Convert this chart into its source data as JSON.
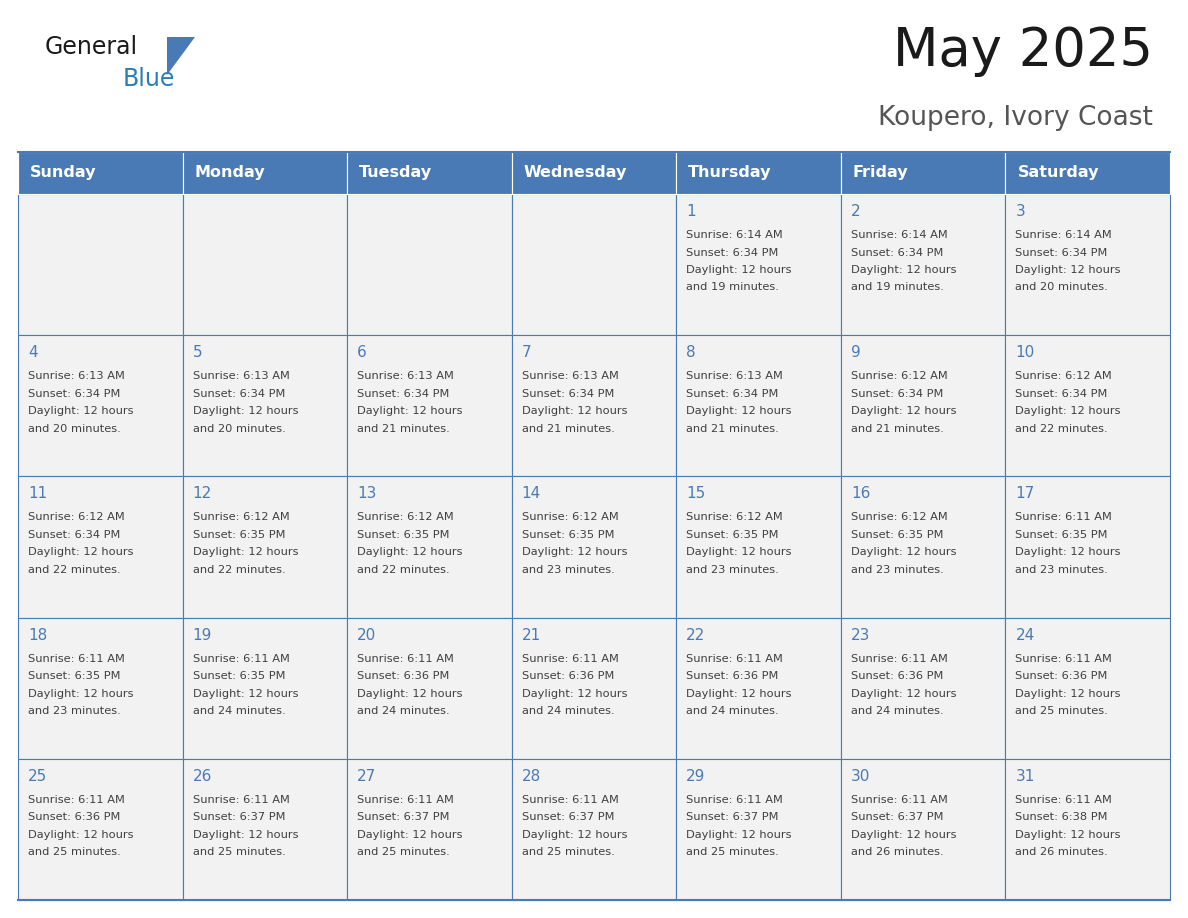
{
  "title": "May 2025",
  "subtitle": "Koupero, Ivory Coast",
  "days_of_week": [
    "Sunday",
    "Monday",
    "Tuesday",
    "Wednesday",
    "Thursday",
    "Friday",
    "Saturday"
  ],
  "header_bg_color": "#4a7ab5",
  "header_text_color": "#ffffff",
  "cell_bg_color": "#f2f2f2",
  "day_number_color": "#4a7ab5",
  "cell_text_color": "#404040",
  "grid_color": "#4a7ab5",
  "title_color": "#1a1a1a",
  "subtitle_color": "#555555",
  "logo_general_color": "#1a1a1a",
  "logo_blue_color": "#2a7db5",
  "logo_triangle_color": "#4a7ab5",
  "calendar": [
    [
      {
        "day": 0,
        "sunrise": "",
        "sunset": "",
        "daylight": ""
      },
      {
        "day": 0,
        "sunrise": "",
        "sunset": "",
        "daylight": ""
      },
      {
        "day": 0,
        "sunrise": "",
        "sunset": "",
        "daylight": ""
      },
      {
        "day": 0,
        "sunrise": "",
        "sunset": "",
        "daylight": ""
      },
      {
        "day": 1,
        "sunrise": "6:14 AM",
        "sunset": "6:34 PM",
        "daylight": "12 hours and 19 minutes."
      },
      {
        "day": 2,
        "sunrise": "6:14 AM",
        "sunset": "6:34 PM",
        "daylight": "12 hours and 19 minutes."
      },
      {
        "day": 3,
        "sunrise": "6:14 AM",
        "sunset": "6:34 PM",
        "daylight": "12 hours and 20 minutes."
      }
    ],
    [
      {
        "day": 4,
        "sunrise": "6:13 AM",
        "sunset": "6:34 PM",
        "daylight": "12 hours and 20 minutes."
      },
      {
        "day": 5,
        "sunrise": "6:13 AM",
        "sunset": "6:34 PM",
        "daylight": "12 hours and 20 minutes."
      },
      {
        "day": 6,
        "sunrise": "6:13 AM",
        "sunset": "6:34 PM",
        "daylight": "12 hours and 21 minutes."
      },
      {
        "day": 7,
        "sunrise": "6:13 AM",
        "sunset": "6:34 PM",
        "daylight": "12 hours and 21 minutes."
      },
      {
        "day": 8,
        "sunrise": "6:13 AM",
        "sunset": "6:34 PM",
        "daylight": "12 hours and 21 minutes."
      },
      {
        "day": 9,
        "sunrise": "6:12 AM",
        "sunset": "6:34 PM",
        "daylight": "12 hours and 21 minutes."
      },
      {
        "day": 10,
        "sunrise": "6:12 AM",
        "sunset": "6:34 PM",
        "daylight": "12 hours and 22 minutes."
      }
    ],
    [
      {
        "day": 11,
        "sunrise": "6:12 AM",
        "sunset": "6:34 PM",
        "daylight": "12 hours and 22 minutes."
      },
      {
        "day": 12,
        "sunrise": "6:12 AM",
        "sunset": "6:35 PM",
        "daylight": "12 hours and 22 minutes."
      },
      {
        "day": 13,
        "sunrise": "6:12 AM",
        "sunset": "6:35 PM",
        "daylight": "12 hours and 22 minutes."
      },
      {
        "day": 14,
        "sunrise": "6:12 AM",
        "sunset": "6:35 PM",
        "daylight": "12 hours and 23 minutes."
      },
      {
        "day": 15,
        "sunrise": "6:12 AM",
        "sunset": "6:35 PM",
        "daylight": "12 hours and 23 minutes."
      },
      {
        "day": 16,
        "sunrise": "6:12 AM",
        "sunset": "6:35 PM",
        "daylight": "12 hours and 23 minutes."
      },
      {
        "day": 17,
        "sunrise": "6:11 AM",
        "sunset": "6:35 PM",
        "daylight": "12 hours and 23 minutes."
      }
    ],
    [
      {
        "day": 18,
        "sunrise": "6:11 AM",
        "sunset": "6:35 PM",
        "daylight": "12 hours and 23 minutes."
      },
      {
        "day": 19,
        "sunrise": "6:11 AM",
        "sunset": "6:35 PM",
        "daylight": "12 hours and 24 minutes."
      },
      {
        "day": 20,
        "sunrise": "6:11 AM",
        "sunset": "6:36 PM",
        "daylight": "12 hours and 24 minutes."
      },
      {
        "day": 21,
        "sunrise": "6:11 AM",
        "sunset": "6:36 PM",
        "daylight": "12 hours and 24 minutes."
      },
      {
        "day": 22,
        "sunrise": "6:11 AM",
        "sunset": "6:36 PM",
        "daylight": "12 hours and 24 minutes."
      },
      {
        "day": 23,
        "sunrise": "6:11 AM",
        "sunset": "6:36 PM",
        "daylight": "12 hours and 24 minutes."
      },
      {
        "day": 24,
        "sunrise": "6:11 AM",
        "sunset": "6:36 PM",
        "daylight": "12 hours and 25 minutes."
      }
    ],
    [
      {
        "day": 25,
        "sunrise": "6:11 AM",
        "sunset": "6:36 PM",
        "daylight": "12 hours and 25 minutes."
      },
      {
        "day": 26,
        "sunrise": "6:11 AM",
        "sunset": "6:37 PM",
        "daylight": "12 hours and 25 minutes."
      },
      {
        "day": 27,
        "sunrise": "6:11 AM",
        "sunset": "6:37 PM",
        "daylight": "12 hours and 25 minutes."
      },
      {
        "day": 28,
        "sunrise": "6:11 AM",
        "sunset": "6:37 PM",
        "daylight": "12 hours and 25 minutes."
      },
      {
        "day": 29,
        "sunrise": "6:11 AM",
        "sunset": "6:37 PM",
        "daylight": "12 hours and 25 minutes."
      },
      {
        "day": 30,
        "sunrise": "6:11 AM",
        "sunset": "6:37 PM",
        "daylight": "12 hours and 26 minutes."
      },
      {
        "day": 31,
        "sunrise": "6:11 AM",
        "sunset": "6:38 PM",
        "daylight": "12 hours and 26 minutes."
      }
    ]
  ]
}
